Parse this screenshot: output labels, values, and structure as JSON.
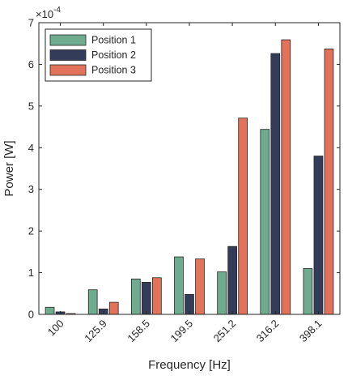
{
  "chart_data": {
    "type": "bar",
    "title": "",
    "xlabel": "Frequency [Hz]",
    "ylabel": "Power [W]",
    "ylim": [
      0,
      7
    ],
    "y_ticks": [
      "0",
      "1",
      "2",
      "3",
      "4",
      "5",
      "6",
      "7"
    ],
    "y_exponent": "×10",
    "y_exponent_power": "-4",
    "y_scale": 0.0001,
    "grid": false,
    "legend_position": "top-left",
    "categories": [
      "100",
      "125.9",
      "158.5",
      "199.5",
      "251.2",
      "316.2",
      "398.1"
    ],
    "series": [
      {
        "name": "Position 1",
        "color": "#6fab8f",
        "values": [
          0.17,
          0.59,
          0.85,
          1.38,
          1.02,
          4.44,
          1.1
        ]
      },
      {
        "name": "Position 2",
        "color": "#333c59",
        "values": [
          0.06,
          0.13,
          0.77,
          0.48,
          1.63,
          6.26,
          3.8
        ]
      },
      {
        "name": "Position 3",
        "color": "#e2735a",
        "values": [
          0.02,
          0.29,
          0.88,
          1.33,
          4.71,
          6.59,
          6.37
        ]
      }
    ]
  }
}
